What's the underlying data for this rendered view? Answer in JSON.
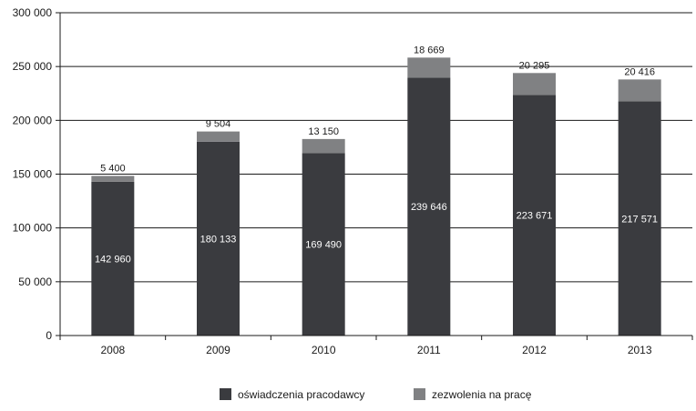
{
  "chart_data": {
    "type": "bar",
    "stacked": true,
    "categories": [
      "2008",
      "2009",
      "2010",
      "2011",
      "2012",
      "2013"
    ],
    "series": [
      {
        "name": "oświadczenia pracodawcy",
        "values": [
          142960,
          180133,
          169490,
          239646,
          223671,
          217571
        ],
        "color": "#3a3b3f"
      },
      {
        "name": "zezwolenia na pracę",
        "values": [
          5400,
          9504,
          13150,
          18669,
          20295,
          20416
        ],
        "color": "#808183"
      }
    ],
    "data_labels": {
      "oświadczenia pracodawcy": [
        "142 960",
        "180 133",
        "169 490",
        "239 646",
        "223 671",
        "217 571"
      ],
      "zezwolenia na pracę": [
        "5 400",
        "9 504",
        "13 150",
        "18 669",
        "20 295",
        "20 416"
      ]
    },
    "y_ticks": [
      0,
      50000,
      100000,
      150000,
      200000,
      250000,
      300000
    ],
    "y_tick_labels": [
      "0",
      "50 000",
      "100 000",
      "150 000",
      "200 000",
      "250 000",
      "300 000"
    ],
    "ylim": [
      0,
      300000
    ],
    "grid": true,
    "legend_position": "bottom",
    "title": "",
    "xlabel": "",
    "ylabel": ""
  }
}
